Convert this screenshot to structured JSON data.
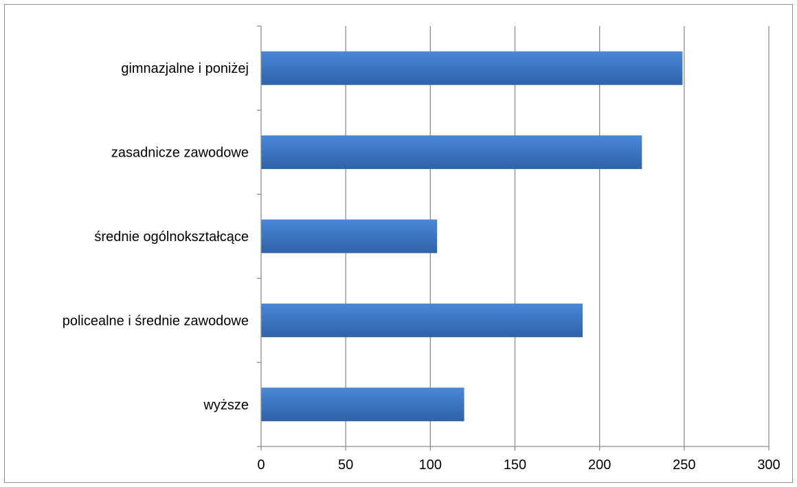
{
  "chart_data": {
    "type": "bar",
    "orientation": "horizontal",
    "categories": [
      "gimnazjalne i poniżej",
      "zasadnicze zawodowe",
      "średnie ogólnokształcące",
      "policealne i średnie zawodowe",
      "wyższe"
    ],
    "values": [
      249,
      225,
      104,
      190,
      120
    ],
    "xlim": [
      0,
      300
    ],
    "xticks": [
      "0",
      "50",
      "100",
      "150",
      "200",
      "250",
      "300"
    ],
    "grid": "vertical",
    "legend": "none",
    "title": "",
    "xlabel": "",
    "ylabel": "",
    "colors": {
      "bar_top": "#4a87d8",
      "bar_bottom": "#2f62a8",
      "grid": "#8c8c8c",
      "axis": "#8c8c8c",
      "text": "#000000"
    }
  }
}
